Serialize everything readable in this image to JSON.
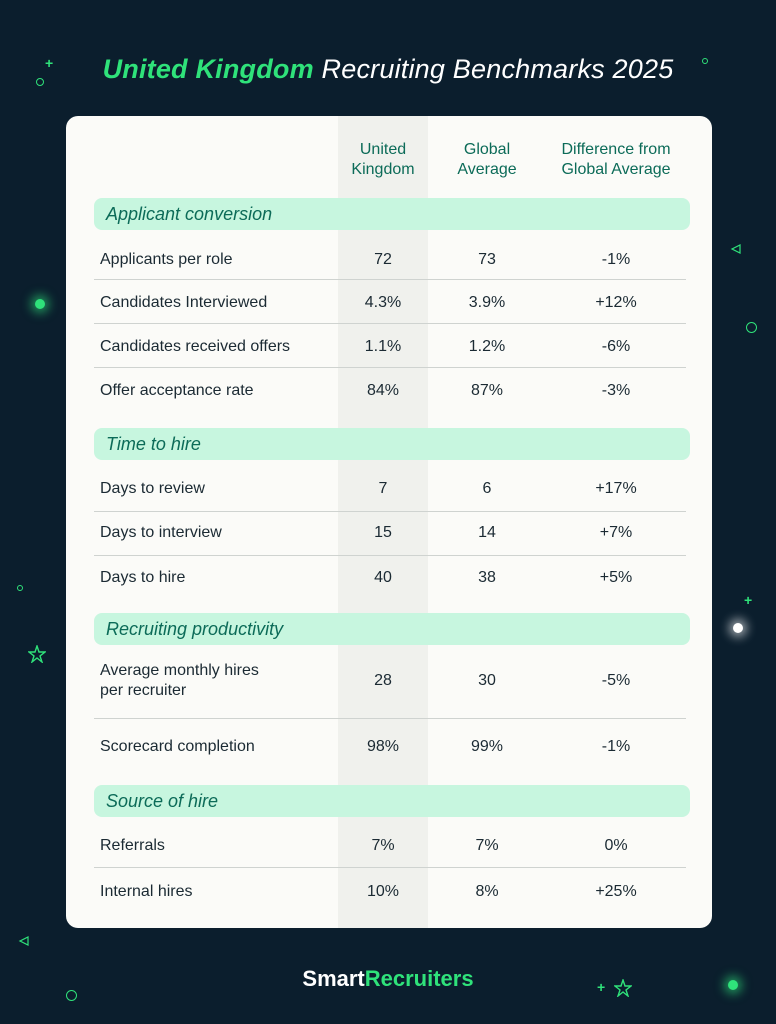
{
  "title": {
    "accent": "United Kingdom",
    "rest": " Recruiting Benchmarks 2025"
  },
  "columns": {
    "c1": [
      "United",
      "Kingdom"
    ],
    "c2": [
      "Global",
      "Average"
    ],
    "c3": [
      "Difference from",
      "Global Average"
    ]
  },
  "chart_data": {
    "type": "table",
    "title": "United Kingdom Recruiting Benchmarks 2025",
    "columns": [
      "United Kingdom",
      "Global Average",
      "Difference from Global Average"
    ],
    "sections": [
      {
        "name": "Applicant conversion",
        "rows": [
          {
            "label": [
              "Applicants per role"
            ],
            "uk": "72",
            "global": "73",
            "diff": "-1%"
          },
          {
            "label": [
              "Candidates Interviewed"
            ],
            "uk": "4.3%",
            "global": "3.9%",
            "diff": "+12%"
          },
          {
            "label": [
              "Candidates received offers"
            ],
            "uk": "1.1%",
            "global": "1.2%",
            "diff": "-6%"
          },
          {
            "label": [
              "Offer acceptance rate"
            ],
            "uk": "84%",
            "global": "87%",
            "diff": "-3%"
          }
        ]
      },
      {
        "name": "Time to hire",
        "rows": [
          {
            "label": [
              "Days to review"
            ],
            "uk": "7",
            "global": "6",
            "diff": "+17%"
          },
          {
            "label": [
              "Days to interview"
            ],
            "uk": "15",
            "global": "14",
            "diff": "+7%"
          },
          {
            "label": [
              "Days to hire"
            ],
            "uk": "40",
            "global": "38",
            "diff": "+5%"
          }
        ]
      },
      {
        "name": "Recruiting productivity",
        "rows": [
          {
            "label": [
              "Average monthly hires",
              "per recruiter"
            ],
            "uk": "28",
            "global": "30",
            "diff": "-5%"
          },
          {
            "label": [
              "Scorecard completion"
            ],
            "uk": "98%",
            "global": "99%",
            "diff": "-1%"
          }
        ]
      },
      {
        "name": "Source of hire",
        "rows": [
          {
            "label": [
              "Referrals"
            ],
            "uk": "7%",
            "global": "7%",
            "diff": "0%"
          },
          {
            "label": [
              "Internal hires"
            ],
            "uk": "10%",
            "global": "8%",
            "diff": "+25%"
          }
        ]
      }
    ]
  },
  "colors": {
    "background": "#0b1e2d",
    "accent": "#2fe27a",
    "section_fill": "#c7f6df",
    "section_text": "#0c6b58"
  },
  "logo": {
    "part1": "Smart",
    "part2": "Recruiters"
  }
}
